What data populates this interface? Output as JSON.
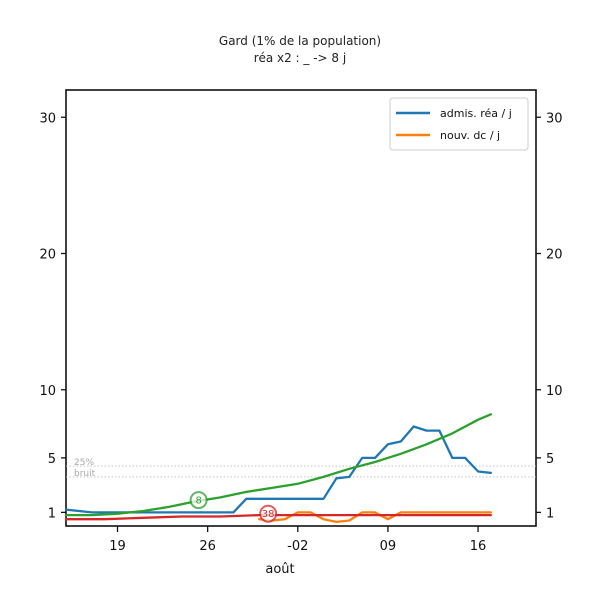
{
  "chart_data": {
    "type": "line",
    "title": "Gard (1% de la population)",
    "subtitle": "réa x2 : _ -> 8 j",
    "xlabel": "août",
    "ylabel": "",
    "x_ticks": [
      {
        "label": "19",
        "day": 19
      },
      {
        "label": "26",
        "day": 26
      },
      {
        "label": "-02",
        "day": 33
      },
      {
        "label": "09",
        "day": 40
      },
      {
        "label": "16",
        "day": 47
      }
    ],
    "y_ticks": [
      1,
      5,
      10,
      20,
      30
    ],
    "xlim": [
      15,
      51.5
    ],
    "ylim": [
      0,
      32
    ],
    "grid": false,
    "legend_position": "top-right",
    "reference_lines": [
      {
        "label": "25%",
        "y": 4.4
      },
      {
        "label": "bruit",
        "y": 3.6
      }
    ],
    "annotations": [
      {
        "text": "8",
        "x": 25.3,
        "y": 1.9,
        "color": "#2ca02c"
      },
      {
        "text": "38",
        "x": 30.7,
        "y": 0.9,
        "color": "#d62728"
      }
    ],
    "series": [
      {
        "name": "admis. réa / j",
        "color": "#1f77b4",
        "points": [
          [
            15,
            1.2
          ],
          [
            16,
            1.1
          ],
          [
            17,
            1.0
          ],
          [
            18,
            1.0
          ],
          [
            19,
            1.0
          ],
          [
            20,
            1.0
          ],
          [
            21,
            1.0
          ],
          [
            22,
            1.0
          ],
          [
            23,
            1.0
          ],
          [
            24,
            1.0
          ],
          [
            25,
            1.0
          ],
          [
            26,
            1.0
          ],
          [
            27,
            1.0
          ],
          [
            28,
            1.0
          ],
          [
            29,
            2.0
          ],
          [
            30,
            2.0
          ],
          [
            31,
            2.0
          ],
          [
            32,
            2.0
          ],
          [
            33,
            2.0
          ],
          [
            34,
            2.0
          ],
          [
            35,
            2.0
          ],
          [
            36,
            3.5
          ],
          [
            37,
            3.6
          ],
          [
            38,
            5.0
          ],
          [
            39,
            5.0
          ],
          [
            40,
            6.0
          ],
          [
            41,
            6.2
          ],
          [
            42,
            7.3
          ],
          [
            43,
            7.0
          ],
          [
            44,
            7.0
          ],
          [
            45,
            5.0
          ],
          [
            46,
            5.0
          ],
          [
            47,
            4.0
          ],
          [
            48,
            3.9
          ]
        ]
      },
      {
        "name": "nouv. dc / j",
        "color": "#ff7f0e",
        "points": [
          [
            30,
            0.5
          ],
          [
            31,
            0.4
          ],
          [
            32,
            0.5
          ],
          [
            33,
            1.0
          ],
          [
            34,
            1.0
          ],
          [
            35,
            0.5
          ],
          [
            36,
            0.3
          ],
          [
            37,
            0.4
          ],
          [
            38,
            1.0
          ],
          [
            39,
            1.0
          ],
          [
            40,
            0.5
          ],
          [
            41,
            1.0
          ],
          [
            42,
            1.0
          ],
          [
            43,
            1.0
          ],
          [
            44,
            1.0
          ],
          [
            45,
            1.0
          ],
          [
            46,
            1.0
          ],
          [
            47,
            1.0
          ],
          [
            48,
            1.0
          ]
        ]
      },
      {
        "name": "",
        "color": "#2ca02c",
        "points": [
          [
            15,
            0.8
          ],
          [
            17,
            0.8
          ],
          [
            19,
            0.9
          ],
          [
            21,
            1.1
          ],
          [
            23,
            1.4
          ],
          [
            25,
            1.8
          ],
          [
            27,
            2.1
          ],
          [
            29,
            2.5
          ],
          [
            31,
            2.8
          ],
          [
            33,
            3.1
          ],
          [
            35,
            3.6
          ],
          [
            37,
            4.2
          ],
          [
            39,
            4.7
          ],
          [
            41,
            5.3
          ],
          [
            43,
            6.0
          ],
          [
            45,
            6.8
          ],
          [
            47,
            7.8
          ],
          [
            48,
            8.2
          ]
        ]
      },
      {
        "name": "",
        "color": "#d62728",
        "points": [
          [
            15,
            0.5
          ],
          [
            18,
            0.5
          ],
          [
            21,
            0.6
          ],
          [
            24,
            0.7
          ],
          [
            27,
            0.7
          ],
          [
            30,
            0.8
          ],
          [
            33,
            0.8
          ],
          [
            36,
            0.8
          ],
          [
            39,
            0.8
          ],
          [
            42,
            0.8
          ],
          [
            45,
            0.8
          ],
          [
            48,
            0.8
          ]
        ]
      }
    ]
  }
}
